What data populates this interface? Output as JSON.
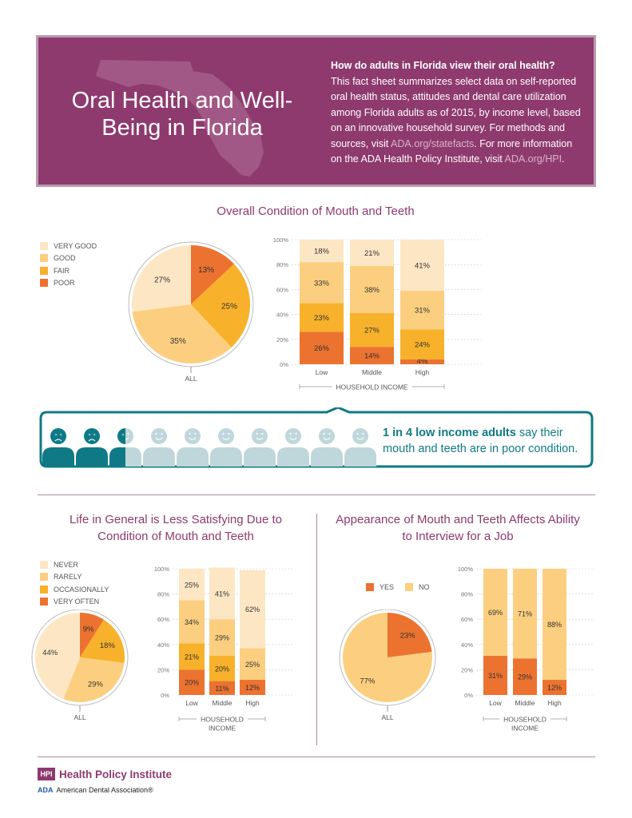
{
  "header": {
    "title": "Oral Health and Well-Being in Florida",
    "question": "How do adults in Florida view their oral health?",
    "intro_text": "This fact sheet summarizes select data on self-reported oral health status, attitudes and dental care utilization among Florida adults as of 2015, by income level, based on an innovative household survey. For methods and sources, visit ",
    "link1": "ADA.org/statefacts",
    "intro_text2": ". For more information on the ADA Health Policy Institute, visit ",
    "link2": "ADA.org/HPI",
    "intro_end": "."
  },
  "colors": {
    "primary": "#8e3a6f",
    "teal": "#0f7a86",
    "very_good": "#fde6c4",
    "good": "#fbcf7f",
    "fair": "#f7b12a",
    "poor": "#ec7230"
  },
  "section1": {
    "title": "Overall Condition of Mouth and Teeth",
    "legend": [
      "VERY GOOD",
      "GOOD",
      "FAIR",
      "POOR"
    ],
    "pie_label": "ALL",
    "xlabel": "HOUSEHOLD INCOME"
  },
  "callout": {
    "highlight": "1 in 4 low income adults",
    "text": " say their mouth and teeth are in poor condition.",
    "icons_total": 10,
    "icons_highlighted": 2.5
  },
  "section2": {
    "title": "Life in General is Less Satisfying Due to Condition of Mouth and Teeth",
    "legend": [
      "NEVER",
      "RARELY",
      "OCCASIONALLY",
      "VERY OFTEN"
    ],
    "pie_label": "ALL",
    "xlabel": "HOUSEHOLD INCOME"
  },
  "section3": {
    "title": "Appearance of Mouth and Teeth Affects Ability to Interview for a Job",
    "legend": [
      "YES",
      "NO"
    ],
    "pie_label": "ALL",
    "xlabel": "HOUSEHOLD INCOME"
  },
  "footer": {
    "hpi_logo": "HPI",
    "hpi_name": "Health Policy Institute",
    "ada_mark": "ADA",
    "ada_name": "American Dental Association®"
  },
  "chart_data": [
    {
      "id": "condition_pie",
      "type": "pie",
      "title": "Overall Condition of Mouth and Teeth",
      "label": "ALL",
      "categories": [
        "POOR",
        "FAIR",
        "GOOD",
        "VERY GOOD"
      ],
      "values": [
        13,
        25,
        35,
        27
      ],
      "colors": [
        "#ec7230",
        "#f7b12a",
        "#fbcf7f",
        "#fde6c4"
      ]
    },
    {
      "id": "condition_bar",
      "type": "bar",
      "stacked": true,
      "categories": [
        "Low",
        "Middle",
        "High"
      ],
      "xlabel": "HOUSEHOLD INCOME",
      "ylim": [
        0,
        100
      ],
      "yticks": [
        "0%",
        "20%",
        "40%",
        "60%",
        "80%",
        "100%"
      ],
      "series": [
        {
          "name": "POOR",
          "values": [
            26,
            14,
            4
          ],
          "color": "#ec7230"
        },
        {
          "name": "FAIR",
          "values": [
            23,
            27,
            24
          ],
          "color": "#f7b12a"
        },
        {
          "name": "GOOD",
          "values": [
            33,
            38,
            31
          ],
          "color": "#fbcf7f"
        },
        {
          "name": "VERY GOOD",
          "values": [
            18,
            21,
            41
          ],
          "color": "#fde6c4"
        }
      ]
    },
    {
      "id": "life_pie",
      "type": "pie",
      "title": "Life in General is Less Satisfying Due to Condition of Mouth and Teeth",
      "label": "ALL",
      "categories": [
        "VERY OFTEN",
        "OCCASIONALLY",
        "RARELY",
        "NEVER"
      ],
      "values": [
        9,
        18,
        29,
        44
      ],
      "colors": [
        "#ec7230",
        "#f7b12a",
        "#fbcf7f",
        "#fde6c4"
      ]
    },
    {
      "id": "life_bar",
      "type": "bar",
      "stacked": true,
      "categories": [
        "Low",
        "Middle",
        "High"
      ],
      "xlabel": "HOUSEHOLD INCOME",
      "ylim": [
        0,
        100
      ],
      "yticks": [
        "0%",
        "20%",
        "40%",
        "60%",
        "80%",
        "100%"
      ],
      "series": [
        {
          "name": "VERY OFTEN",
          "values": [
            20,
            11,
            12
          ],
          "color": "#ec7230"
        },
        {
          "name": "OCCASIONALLY",
          "values": [
            21,
            20,
            null
          ],
          "color": "#f7b12a"
        },
        {
          "name": "RARELY",
          "values": [
            34,
            29,
            25
          ],
          "color": "#fbcf7f"
        },
        {
          "name": "NEVER",
          "values": [
            25,
            41,
            62
          ],
          "color": "#fde6c4"
        }
      ]
    },
    {
      "id": "job_pie",
      "type": "pie",
      "title": "Appearance of Mouth and Teeth Affects Ability to Interview for a Job",
      "label": "ALL",
      "categories": [
        "YES",
        "NO"
      ],
      "values": [
        23,
        77
      ],
      "colors": [
        "#ec7230",
        "#fbcf7f"
      ]
    },
    {
      "id": "job_bar",
      "type": "bar",
      "stacked": true,
      "categories": [
        "Low",
        "Middle",
        "High"
      ],
      "xlabel": "HOUSEHOLD INCOME",
      "ylim": [
        0,
        100
      ],
      "yticks": [
        "0%",
        "20%",
        "40%",
        "60%",
        "80%",
        "100%"
      ],
      "series": [
        {
          "name": "YES",
          "values": [
            31,
            29,
            12
          ],
          "color": "#ec7230"
        },
        {
          "name": "NO",
          "values": [
            69,
            71,
            88
          ],
          "color": "#fbcf7f"
        }
      ]
    }
  ]
}
